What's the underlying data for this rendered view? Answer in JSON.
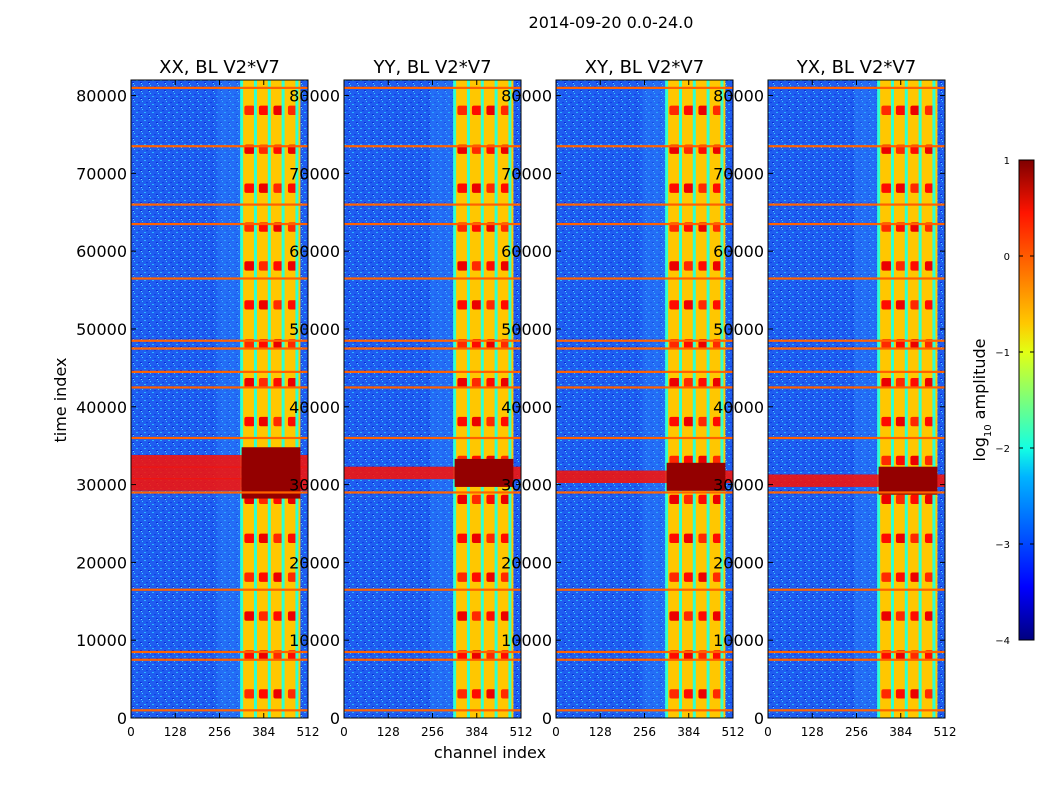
{
  "figure": {
    "suptitle": "2014-09-20 0.0-24.0",
    "xlabel": "channel index",
    "ylabel": "time index"
  },
  "chart_data": [
    {
      "type": "heatmap",
      "title": "XX, BL V2*V7",
      "xlim": [
        0,
        512
      ],
      "ylim": [
        0,
        82000
      ],
      "x_ticks": [
        "0",
        "128",
        "256",
        "384",
        "512"
      ],
      "y_ticks": [
        "0",
        "10000",
        "20000",
        "30000",
        "40000",
        "50000",
        "60000",
        "70000",
        "80000"
      ],
      "signal_channel_range": [
        320,
        490
      ],
      "strong_rows": [
        30000,
        31500,
        33000
      ],
      "background_log10": -3
    },
    {
      "type": "heatmap",
      "title": "YY, BL V2*V7",
      "xlim": [
        0,
        512
      ],
      "ylim": [
        0,
        82000
      ],
      "x_ticks": [
        "0",
        "128",
        "256",
        "384",
        "512"
      ],
      "y_ticks": [
        "0",
        "10000",
        "20000",
        "30000",
        "40000",
        "50000",
        "60000",
        "70000",
        "80000"
      ],
      "signal_channel_range": [
        320,
        490
      ],
      "strong_rows": [
        31500
      ],
      "background_log10": -3
    },
    {
      "type": "heatmap",
      "title": "XY, BL V2*V7",
      "xlim": [
        0,
        512
      ],
      "ylim": [
        0,
        82000
      ],
      "x_ticks": [
        "0",
        "128",
        "256",
        "384",
        "512"
      ],
      "y_ticks": [
        "0",
        "10000",
        "20000",
        "30000",
        "40000",
        "50000",
        "60000",
        "70000",
        "80000"
      ],
      "signal_channel_range": [
        320,
        490
      ],
      "strong_rows": [
        31000
      ],
      "background_log10": -3
    },
    {
      "type": "heatmap",
      "title": "YX, BL V2*V7",
      "xlim": [
        0,
        512
      ],
      "ylim": [
        0,
        82000
      ],
      "x_ticks": [
        "0",
        "128",
        "256",
        "384",
        "512"
      ],
      "y_ticks": [
        "0",
        "10000",
        "20000",
        "30000",
        "40000",
        "50000",
        "60000",
        "70000",
        "80000"
      ],
      "signal_channel_range": [
        320,
        490
      ],
      "strong_rows": [
        30500
      ],
      "background_log10": -3
    }
  ],
  "colorbar": {
    "label": "log10 amplitude",
    "label_prefix": "log",
    "label_sub": "10",
    "label_suffix": " amplitude",
    "min": -4,
    "max": 1,
    "ticks": [
      "1",
      "0",
      "−1",
      "−2",
      "−3",
      "−4"
    ],
    "colormap": "jet"
  },
  "rfi_rows": [
    1000,
    7500,
    8500,
    16500,
    29000,
    36000,
    42500,
    44500,
    47500,
    48500,
    56500,
    63500,
    66000,
    73500,
    81000
  ],
  "signal_band_edges": [
    320,
    360,
    400,
    440,
    480
  ]
}
